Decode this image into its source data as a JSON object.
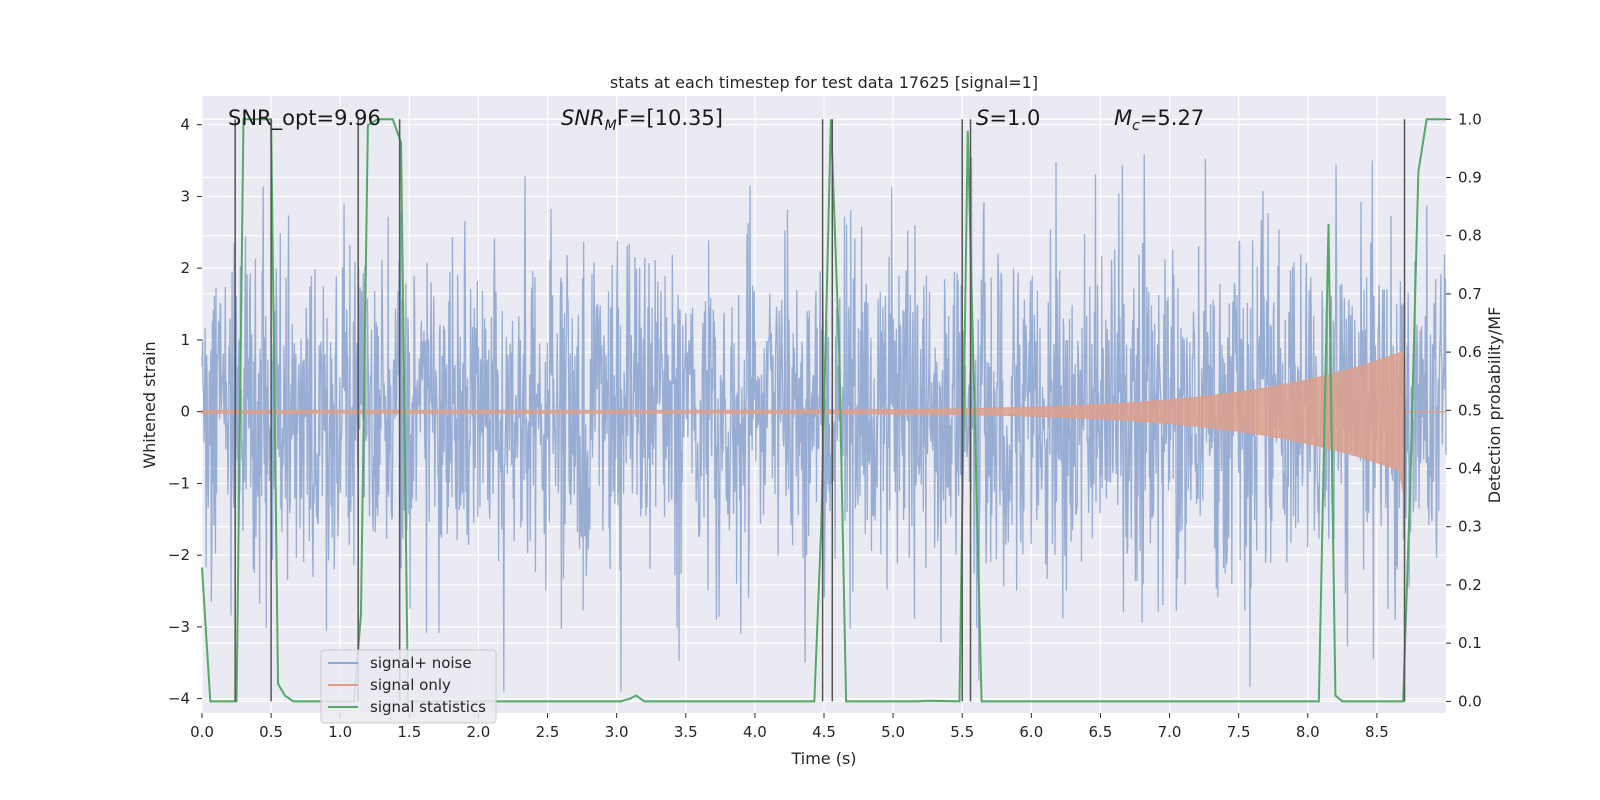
{
  "chart_data": {
    "type": "line",
    "title": "stats at each timestep for test data 17625 [signal=1]",
    "xlabel": "Time (s)",
    "ylabel_left": "Whitened strain",
    "ylabel_right": "Detection probability/MF",
    "xlim": [
      0.0,
      9.0
    ],
    "ylim_left": [
      -4.2,
      4.4
    ],
    "ylim_right": [
      -0.02,
      1.04
    ],
    "xticks": [
      "0.0",
      "0.5",
      "1.0",
      "1.5",
      "2.0",
      "2.5",
      "3.0",
      "3.5",
      "4.0",
      "4.5",
      "5.0",
      "5.5",
      "6.0",
      "6.5",
      "7.0",
      "7.5",
      "8.0",
      "8.5"
    ],
    "yticks_left": [
      "-4",
      "-3",
      "-2",
      "-1",
      "0",
      "1",
      "2",
      "3",
      "4"
    ],
    "yticks_right": [
      "0.0",
      "0.1",
      "0.2",
      "0.3",
      "0.4",
      "0.5",
      "0.6",
      "0.7",
      "0.8",
      "0.9",
      "1.0"
    ],
    "grid": true,
    "annotations": {
      "snr_opt": "SNR_opt=9.96",
      "snr_mf_sym": "SNR",
      "snr_mf_sub": "M",
      "snr_mf_tail": "F=[10.35]",
      "s_sym": "S",
      "s_val": "=1.0",
      "mc_sym": "M",
      "mc_sub": "c",
      "mc_val": "=5.27"
    },
    "legend": {
      "location": "lower left",
      "entries": [
        "signal+ noise",
        "signal only",
        "signal statistics"
      ]
    },
    "series": [
      {
        "name": "signal+ noise",
        "axis": "left",
        "color": "#8fa6cf",
        "description": "whitened strain noise, approximately gaussian, range about -3.9 to 3.5"
      },
      {
        "name": "signal only",
        "axis": "left",
        "color": "#dd9f8b",
        "chirp": {
          "start_amp": 0.02,
          "end_time": 8.7,
          "peak_amp_pos": 0.85,
          "peak_amp_neg": -1.25
        }
      },
      {
        "name": "signal statistics",
        "axis": "right",
        "color": "#55a868",
        "x": [
          0.0,
          0.06,
          0.25,
          0.3,
          0.5,
          0.55,
          0.6,
          0.66,
          1.1,
          1.15,
          1.2,
          1.27,
          1.38,
          1.44,
          1.49,
          3.03,
          3.1,
          3.14,
          3.2,
          4.43,
          4.48,
          4.55,
          4.61,
          4.66,
          5.18,
          5.24,
          5.48,
          5.54,
          5.61,
          5.64,
          5.85,
          6.5,
          8.08,
          8.15,
          8.2,
          8.25,
          8.3,
          8.69,
          8.74,
          8.8,
          8.86,
          9.0
        ],
        "y": [
          0.23,
          0.0,
          0.0,
          1.0,
          1.0,
          0.03,
          0.01,
          0.0,
          0.0,
          0.15,
          0.99,
          1.0,
          1.0,
          0.96,
          0.0,
          0.0,
          0.005,
          0.01,
          0.0,
          0.0,
          0.3,
          1.0,
          0.6,
          0.0,
          0.0,
          0.001,
          0.0,
          0.98,
          0.3,
          0.0,
          0.0,
          0.0,
          0.0,
          0.82,
          0.01,
          0.0,
          0.0,
          0.0,
          0.36,
          0.91,
          1.0,
          1.0
        ]
      }
    ],
    "vertical_markers": [
      0.24,
      0.5,
      1.13,
      1.43,
      4.49,
      4.56,
      5.5,
      5.56,
      8.7
    ]
  }
}
